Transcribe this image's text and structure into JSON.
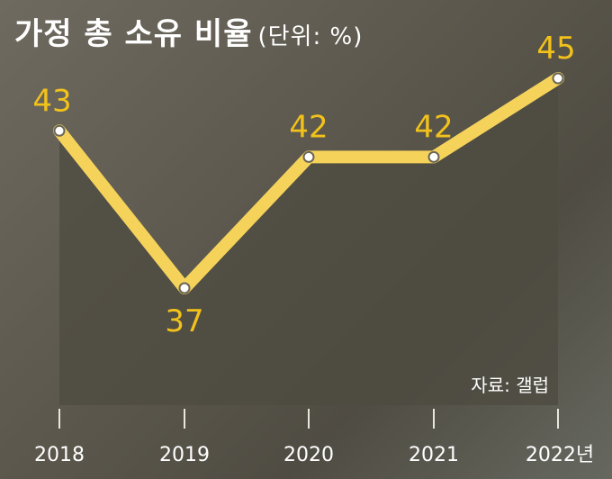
{
  "chart_data": {
    "type": "line",
    "title": "가정 총 소유 비율",
    "subtitle": "(단위: %)",
    "source": "자료: 갤럽",
    "categories": [
      "2018",
      "2019",
      "2020",
      "2021",
      "2022년"
    ],
    "values": [
      43,
      37,
      42,
      42,
      45
    ],
    "value_labels": [
      "43",
      "37",
      "42",
      "42",
      "45"
    ],
    "ylim": [
      36,
      46
    ],
    "grid": false,
    "legend": "none",
    "colors": {
      "line": "#f5d35a",
      "label": "#f2c21b",
      "area": "#4e4b40",
      "text": "#ffffff",
      "tick": "#e8e6de"
    }
  }
}
